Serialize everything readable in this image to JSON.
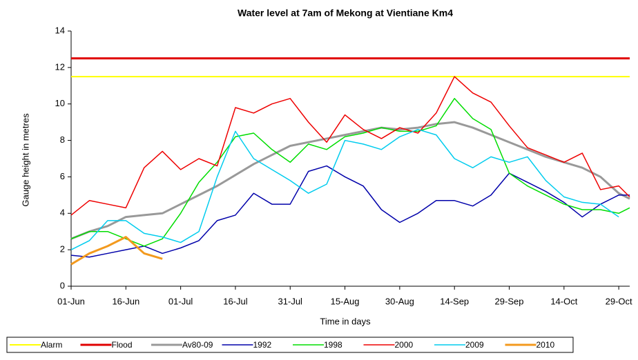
{
  "chart_data": {
    "type": "line",
    "title": "Water level at 7am of Mekong at Vientiane Km4",
    "x_label": "Time in days",
    "y_label": "Gauge height in metres",
    "x": [
      0,
      5,
      10,
      15,
      20,
      25,
      30,
      35,
      40,
      45,
      50,
      55,
      60,
      65,
      70,
      75,
      80,
      85,
      90,
      95,
      100,
      105,
      110,
      115,
      120,
      125,
      130,
      135,
      140,
      145,
      150,
      153
    ],
    "xlim": [
      0,
      153
    ],
    "xticks": [
      {
        "value": 0,
        "label": "01-Jun"
      },
      {
        "value": 15,
        "label": "16-Jun"
      },
      {
        "value": 30,
        "label": "01-Jul"
      },
      {
        "value": 45,
        "label": "16-Jul"
      },
      {
        "value": 60,
        "label": "31-Jul"
      },
      {
        "value": 75,
        "label": "15-Aug"
      },
      {
        "value": 90,
        "label": "30-Aug"
      },
      {
        "value": 105,
        "label": "14-Sep"
      },
      {
        "value": 120,
        "label": "29-Sep"
      },
      {
        "value": 135,
        "label": "14-Oct"
      },
      {
        "value": 150,
        "label": "29-Oct"
      }
    ],
    "ylim": [
      0,
      14
    ],
    "yticks": [
      0,
      2,
      4,
      6,
      8,
      10,
      12,
      14
    ],
    "grid": false,
    "legend": "bottom",
    "series": [
      {
        "name": "Alarm",
        "color": "#ffff00",
        "width": 2,
        "values": [
          11.5,
          11.5,
          11.5,
          11.5,
          11.5,
          11.5,
          11.5,
          11.5,
          11.5,
          11.5,
          11.5,
          11.5,
          11.5,
          11.5,
          11.5,
          11.5,
          11.5,
          11.5,
          11.5,
          11.5,
          11.5,
          11.5,
          11.5,
          11.5,
          11.5,
          11.5,
          11.5,
          11.5,
          11.5,
          11.5,
          11.5,
          11.5
        ]
      },
      {
        "name": "Flood",
        "color": "#e00000",
        "width": 3,
        "values": [
          12.5,
          12.5,
          12.5,
          12.5,
          12.5,
          12.5,
          12.5,
          12.5,
          12.5,
          12.5,
          12.5,
          12.5,
          12.5,
          12.5,
          12.5,
          12.5,
          12.5,
          12.5,
          12.5,
          12.5,
          12.5,
          12.5,
          12.5,
          12.5,
          12.5,
          12.5,
          12.5,
          12.5,
          12.5,
          12.5,
          12.5,
          12.5
        ]
      },
      {
        "name": "Av80-09",
        "color": "#999999",
        "width": 3,
        "values": [
          2.6,
          3.0,
          3.3,
          3.8,
          3.9,
          4.0,
          4.5,
          5.0,
          5.5,
          6.1,
          6.7,
          7.2,
          7.7,
          7.9,
          8.1,
          8.3,
          8.5,
          8.7,
          8.6,
          8.7,
          8.9,
          9.0,
          8.7,
          8.3,
          7.9,
          7.5,
          7.1,
          6.8,
          6.5,
          6.0,
          5.1,
          4.8
        ]
      },
      {
        "name": "1992",
        "color": "#0000aa",
        "width": 1.5,
        "values": [
          1.7,
          1.6,
          1.8,
          2.0,
          2.2,
          1.8,
          2.1,
          2.5,
          3.6,
          3.9,
          5.1,
          4.5,
          4.5,
          6.3,
          6.6,
          6.0,
          5.5,
          4.2,
          3.5,
          4.0,
          4.7,
          4.7,
          4.4,
          5.0,
          6.2,
          5.7,
          5.2,
          4.6,
          3.8,
          4.5,
          5.0,
          5.0
        ]
      },
      {
        "name": "1998",
        "color": "#00dd00",
        "width": 1.5,
        "values": [
          2.6,
          3.0,
          3.0,
          2.6,
          2.2,
          2.6,
          4.0,
          5.7,
          6.8,
          8.2,
          8.4,
          7.5,
          6.8,
          7.8,
          7.5,
          8.2,
          8.4,
          8.7,
          8.5,
          8.5,
          8.8,
          10.3,
          9.2,
          8.6,
          6.2,
          5.5,
          5.0,
          4.5,
          4.2,
          4.2,
          4.0,
          4.3
        ]
      },
      {
        "name": "2000",
        "color": "#ee0000",
        "width": 1.5,
        "values": [
          3.9,
          4.7,
          4.5,
          4.3,
          6.5,
          7.4,
          6.4,
          7.0,
          6.6,
          9.8,
          9.5,
          10.0,
          10.3,
          9.0,
          7.9,
          9.4,
          8.6,
          8.1,
          8.7,
          8.4,
          9.5,
          11.5,
          10.6,
          10.1,
          8.8,
          7.6,
          7.2,
          6.8,
          7.3,
          5.3,
          5.5,
          4.9
        ]
      },
      {
        "name": "2009",
        "color": "#00ccee",
        "width": 1.5,
        "values": [
          2.0,
          2.5,
          3.6,
          3.6,
          2.9,
          2.7,
          2.4,
          3.0,
          6.0,
          8.5,
          7.0,
          6.4,
          5.8,
          5.1,
          5.6,
          8.0,
          7.8,
          7.5,
          8.2,
          8.6,
          8.3,
          7.0,
          6.5,
          7.1,
          6.8,
          7.1,
          5.8,
          4.9,
          4.6,
          4.5,
          3.8,
          null
        ]
      },
      {
        "name": "2010",
        "color": "#f39a1e",
        "width": 3,
        "values": [
          1.2,
          1.8,
          2.2,
          2.7,
          1.8,
          1.5,
          null,
          null,
          null,
          null,
          null,
          null,
          null,
          null,
          null,
          null,
          null,
          null,
          null,
          null,
          null,
          null,
          null,
          null,
          null,
          null,
          null,
          null,
          null,
          null,
          null,
          null
        ]
      }
    ]
  }
}
